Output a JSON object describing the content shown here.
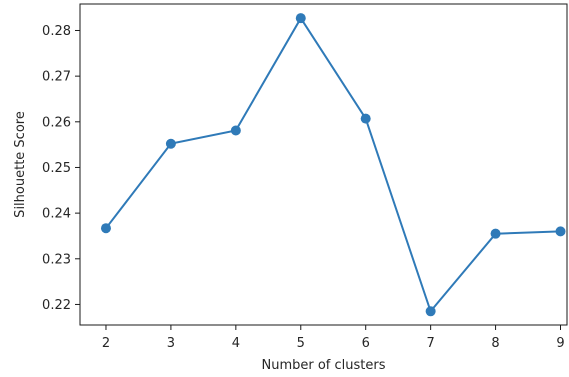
{
  "chart_data": {
    "type": "line",
    "xlabel": "Number of clusters",
    "ylabel": "Silhouette Score",
    "x": [
      2,
      3,
      4,
      5,
      6,
      7,
      8,
      9
    ],
    "series": [
      {
        "values": [
          0.2367,
          0.2552,
          0.2581,
          0.2827,
          0.2607,
          0.2185,
          0.2355,
          0.236
        ],
        "color": "#2f7ab8",
        "marker": "circle"
      }
    ],
    "xticks": [
      "2",
      "3",
      "4",
      "5",
      "6",
      "7",
      "8",
      "9"
    ],
    "yticks": [
      "0.22",
      "0.23",
      "0.24",
      "0.25",
      "0.26",
      "0.27",
      "0.28"
    ],
    "xlim": [
      1.6,
      9.1
    ],
    "ylim": [
      0.2155,
      0.2858
    ],
    "grid": false
  }
}
